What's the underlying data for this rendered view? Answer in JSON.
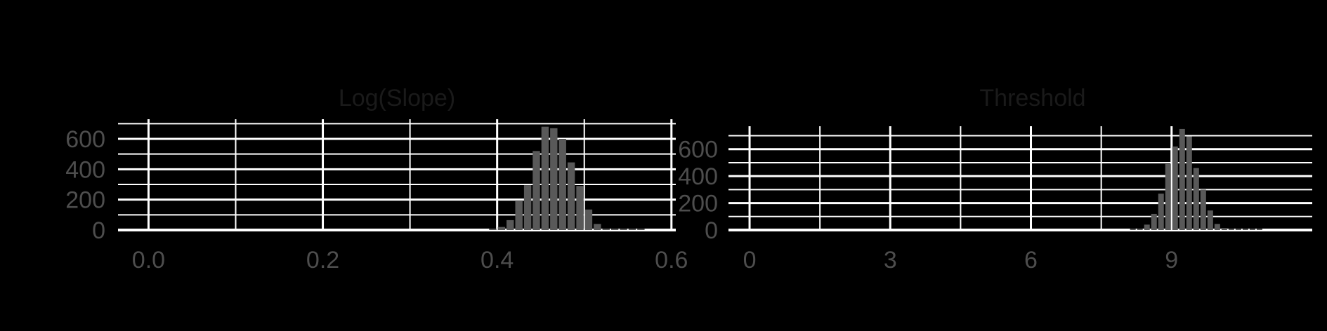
{
  "chart_data": [
    {
      "type": "bar",
      "title": "Log(Slope)",
      "xlabel": "",
      "ylabel": "",
      "xlim": [
        -0.035,
        0.605
      ],
      "ylim": [
        0,
        720
      ],
      "x_ticks": [
        "0.0",
        "0.2",
        "0.4",
        "0.6"
      ],
      "x_tick_values": [
        0,
        0.2,
        0.4,
        0.6
      ],
      "y_ticks": [
        "0",
        "200",
        "400",
        "600"
      ],
      "y_tick_values": [
        0,
        200,
        400,
        600
      ],
      "bin_width": 0.01,
      "x": [
        0.39,
        0.4,
        0.41,
        0.42,
        0.43,
        0.44,
        0.45,
        0.46,
        0.47,
        0.48,
        0.49,
        0.5,
        0.51,
        0.52,
        0.53,
        0.54,
        0.55,
        0.56
      ],
      "values": [
        5,
        20,
        65,
        195,
        295,
        520,
        680,
        670,
        600,
        445,
        290,
        135,
        40,
        8,
        2,
        0,
        0,
        0
      ],
      "grid": true,
      "bar_color": "#595959"
    },
    {
      "type": "bar",
      "title": "Threshold",
      "xlabel": "",
      "ylabel": "",
      "xlim": [
        -0.45,
        12.0
      ],
      "ylim": [
        0,
        760
      ],
      "x_ticks": [
        "0",
        "3",
        "6",
        "9"
      ],
      "x_tick_values": [
        0,
        3,
        6,
        9
      ],
      "y_ticks": [
        "0",
        "200",
        "400",
        "600"
      ],
      "y_tick_values": [
        0,
        200,
        400,
        600
      ],
      "bin_width": 0.15,
      "x": [
        8.1,
        8.25,
        8.4,
        8.55,
        8.7,
        8.85,
        9.0,
        9.15,
        9.3,
        9.45,
        9.6,
        9.75,
        9.9,
        10.05,
        10.2,
        10.35,
        10.5,
        10.65,
        10.8
      ],
      "values": [
        2,
        10,
        40,
        120,
        270,
        490,
        620,
        750,
        695,
        460,
        300,
        145,
        45,
        15,
        5,
        8,
        2,
        0,
        0
      ],
      "grid": true,
      "bar_color": "#595959"
    }
  ]
}
